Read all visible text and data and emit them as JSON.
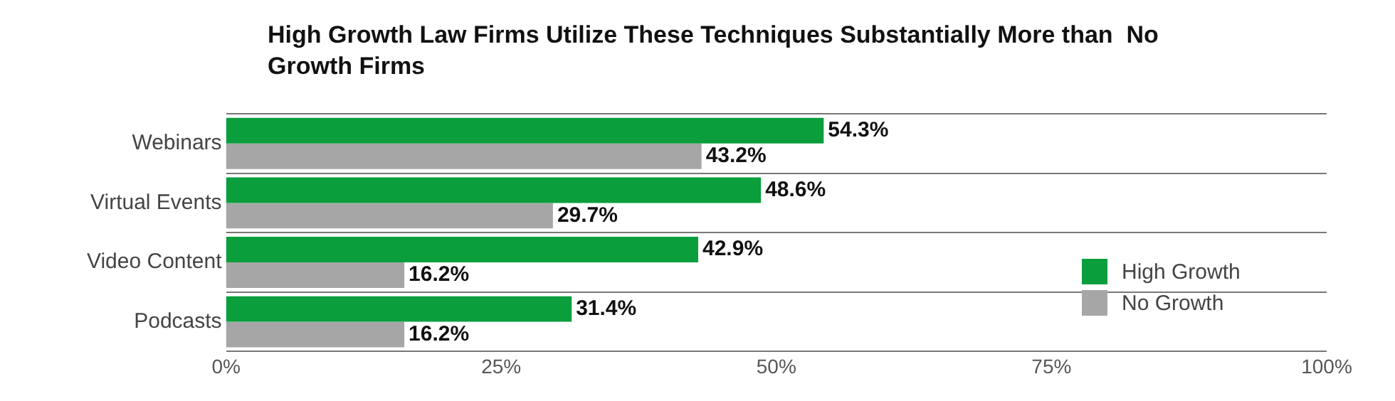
{
  "chart_data": {
    "type": "bar",
    "orientation": "horizontal",
    "title": "High Growth Law Firms Utilize These Techniques Substantially More than  No Growth Firms",
    "categories": [
      "Webinars",
      "Virtual Events",
      "Video Content",
      "Podcasts"
    ],
    "series": [
      {
        "name": "High Growth",
        "color": "#0a9e3c",
        "values": [
          54.3,
          48.6,
          42.9,
          31.4
        ],
        "value_labels": [
          "54.3%",
          "48.6%",
          "42.9%",
          "31.4%"
        ]
      },
      {
        "name": "No Growth",
        "color": "#a6a6a6",
        "values": [
          43.2,
          29.7,
          16.2,
          16.2
        ],
        "value_labels": [
          "43.2%",
          "29.7%",
          "16.2%",
          "16.2%"
        ]
      }
    ],
    "xlim": [
      0,
      100
    ],
    "xticks": [
      {
        "value": 0,
        "label": "0%"
      },
      {
        "value": 25,
        "label": "25%"
      },
      {
        "value": 50,
        "label": "50%"
      },
      {
        "value": 75,
        "label": "75%"
      },
      {
        "value": 100,
        "label": "100%"
      }
    ],
    "grid": "y",
    "legend": "bottom right"
  }
}
